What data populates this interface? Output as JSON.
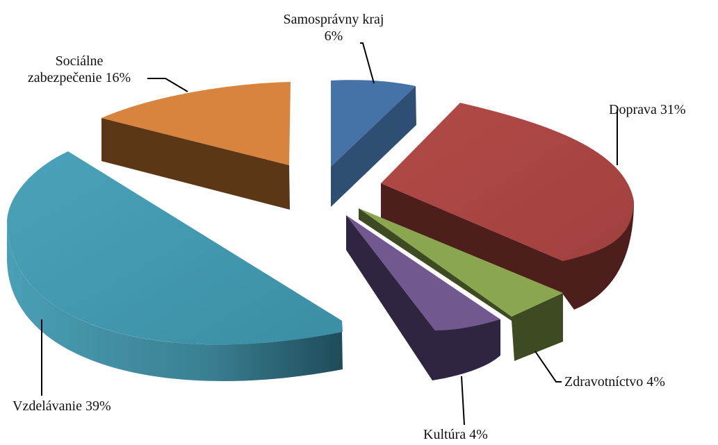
{
  "chart_data": {
    "type": "pie",
    "title": "",
    "style": "3d-exploded",
    "slices": [
      {
        "name": "Samosprávny kraj",
        "value": 6,
        "label": "Samosprávny kraj",
        "pct": "6%",
        "color": "#4572A7",
        "side": "#2F4E73"
      },
      {
        "name": "Doprava",
        "value": 31,
        "label": "Doprava 31%",
        "color": "#AA4643",
        "side": "#4E1E1D"
      },
      {
        "name": "Zdravotníctvo",
        "value": 4,
        "label": "Zdravotníctvo 4%",
        "color": "#89A54E",
        "side": "#3D4A22"
      },
      {
        "name": "Kultúra",
        "value": 4,
        "label": "Kultúra 4%",
        "color": "#71588F",
        "side": "#2F2540"
      },
      {
        "name": "Vzdelávanie",
        "value": 39,
        "label": "Vzdelávanie 39%",
        "color": "#4198AF",
        "side": "#2A6576"
      },
      {
        "name": "Sociálne zabezpečenie",
        "value": 16,
        "label_line1": "Sociálne",
        "label_line2": "zabezpečenie 16%",
        "color": "#DB843D",
        "side": "#5C3716"
      }
    ]
  }
}
